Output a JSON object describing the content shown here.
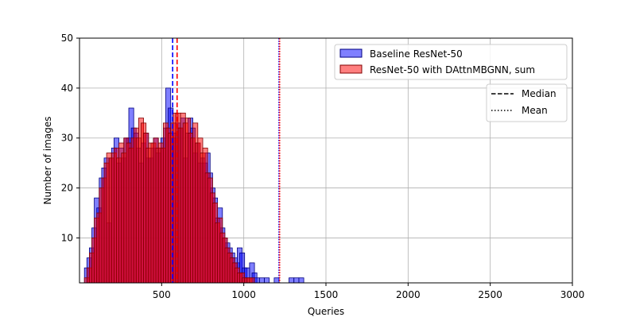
{
  "chart_data": {
    "type": "histogram",
    "title": "",
    "xlabel": "Queries",
    "ylabel": "Number of images",
    "xlim": [
      0,
      3000
    ],
    "ylim": [
      1,
      50
    ],
    "x_ticks": [
      500,
      1000,
      1500,
      2000,
      2500,
      3000
    ],
    "y_ticks": [
      10,
      20,
      30,
      40,
      50
    ],
    "grid": true,
    "bin_width": 30,
    "series": [
      {
        "name": "Baseline ResNet-50",
        "color": "#0000ff",
        "edge_color": "#000080",
        "alpha": 0.5,
        "bins": [
          [
            45,
            4
          ],
          [
            60,
            6
          ],
          [
            75,
            8
          ],
          [
            90,
            12
          ],
          [
            105,
            18
          ],
          [
            120,
            16
          ],
          [
            135,
            22
          ],
          [
            150,
            24
          ],
          [
            165,
            26
          ],
          [
            180,
            13
          ],
          [
            195,
            26
          ],
          [
            210,
            28
          ],
          [
            225,
            30
          ],
          [
            240,
            25
          ],
          [
            255,
            28
          ],
          [
            270,
            26
          ],
          [
            285,
            30
          ],
          [
            300,
            30
          ],
          [
            315,
            36
          ],
          [
            330,
            32
          ],
          [
            345,
            31
          ],
          [
            360,
            28
          ],
          [
            375,
            25
          ],
          [
            390,
            29
          ],
          [
            405,
            31
          ],
          [
            420,
            26
          ],
          [
            435,
            26
          ],
          [
            450,
            28
          ],
          [
            465,
            30
          ],
          [
            480,
            27
          ],
          [
            495,
            28
          ],
          [
            510,
            30
          ],
          [
            525,
            32
          ],
          [
            540,
            40
          ],
          [
            555,
            36
          ],
          [
            570,
            30
          ],
          [
            585,
            31
          ],
          [
            600,
            33
          ],
          [
            615,
            32
          ],
          [
            630,
            34
          ],
          [
            645,
            26
          ],
          [
            660,
            31
          ],
          [
            675,
            34
          ],
          [
            690,
            32
          ],
          [
            705,
            27
          ],
          [
            720,
            29
          ],
          [
            735,
            25
          ],
          [
            750,
            26
          ],
          [
            765,
            25
          ],
          [
            780,
            27
          ],
          [
            795,
            23
          ],
          [
            810,
            20
          ],
          [
            825,
            18
          ],
          [
            840,
            14
          ],
          [
            855,
            16
          ],
          [
            870,
            12
          ],
          [
            885,
            10
          ],
          [
            900,
            9
          ],
          [
            915,
            8
          ],
          [
            930,
            7
          ],
          [
            945,
            6
          ],
          [
            960,
            5
          ],
          [
            975,
            8
          ],
          [
            990,
            7
          ],
          [
            1005,
            4
          ],
          [
            1020,
            4
          ],
          [
            1050,
            5
          ],
          [
            1065,
            3
          ],
          [
            1080,
            2
          ],
          [
            1110,
            2
          ],
          [
            1140,
            2
          ],
          [
            1200,
            2
          ],
          [
            1290,
            2
          ],
          [
            1320,
            2
          ],
          [
            1350,
            2
          ],
          [
            1380,
            1
          ],
          [
            1590,
            1
          ],
          [
            1605,
            1
          ],
          [
            1635,
            1
          ],
          [
            2175,
            1
          ]
        ]
      },
      {
        "name": "ResNet-50 with DAttnMBGNN, sum",
        "color": "#ff0000",
        "edge_color": "#800000",
        "alpha": 0.5,
        "bins": [
          [
            45,
            2
          ],
          [
            60,
            4
          ],
          [
            75,
            7
          ],
          [
            90,
            10
          ],
          [
            105,
            14
          ],
          [
            120,
            15
          ],
          [
            135,
            20
          ],
          [
            150,
            22
          ],
          [
            165,
            25
          ],
          [
            180,
            27
          ],
          [
            195,
            26
          ],
          [
            210,
            27
          ],
          [
            225,
            28
          ],
          [
            240,
            26
          ],
          [
            255,
            29
          ],
          [
            270,
            27
          ],
          [
            285,
            30
          ],
          [
            300,
            29
          ],
          [
            315,
            28
          ],
          [
            330,
            30
          ],
          [
            345,
            32
          ],
          [
            360,
            30
          ],
          [
            375,
            34
          ],
          [
            390,
            33
          ],
          [
            405,
            31
          ],
          [
            420,
            28
          ],
          [
            435,
            29
          ],
          [
            450,
            29
          ],
          [
            465,
            30
          ],
          [
            480,
            28
          ],
          [
            495,
            29
          ],
          [
            510,
            28
          ],
          [
            525,
            33
          ],
          [
            540,
            32
          ],
          [
            555,
            31
          ],
          [
            570,
            33
          ],
          [
            585,
            35
          ],
          [
            600,
            35
          ],
          [
            615,
            32
          ],
          [
            630,
            35
          ],
          [
            645,
            33
          ],
          [
            660,
            34
          ],
          [
            675,
            31
          ],
          [
            690,
            30
          ],
          [
            705,
            33
          ],
          [
            720,
            29
          ],
          [
            735,
            30
          ],
          [
            750,
            27
          ],
          [
            765,
            28
          ],
          [
            780,
            23
          ],
          [
            795,
            22
          ],
          [
            810,
            19
          ],
          [
            825,
            17
          ],
          [
            840,
            13
          ],
          [
            855,
            14
          ],
          [
            870,
            11
          ],
          [
            885,
            10
          ],
          [
            900,
            8
          ],
          [
            915,
            7
          ],
          [
            930,
            6
          ],
          [
            945,
            5
          ],
          [
            960,
            4
          ],
          [
            975,
            3
          ],
          [
            990,
            3
          ],
          [
            1005,
            2
          ],
          [
            1020,
            2
          ],
          [
            1035,
            2
          ],
          [
            1050,
            2
          ],
          [
            1065,
            1
          ],
          [
            1095,
            1
          ],
          [
            1125,
            1
          ],
          [
            1170,
            1
          ],
          [
            1215,
            1
          ],
          [
            1230,
            1
          ],
          [
            1260,
            1
          ],
          [
            1380,
            1
          ],
          [
            1485,
            1
          ],
          [
            1530,
            1
          ],
          [
            1560,
            1
          ],
          [
            1650,
            1
          ],
          [
            1740,
            1
          ],
          [
            1860,
            1
          ],
          [
            2010,
            1
          ],
          [
            2205,
            1
          ],
          [
            2475,
            1
          ],
          [
            2715,
            1
          ]
        ]
      }
    ],
    "reference_lines": [
      {
        "series": "Baseline ResNet-50",
        "stat": "Median",
        "x": 567,
        "color": "#0000ff",
        "dash": "dashed"
      },
      {
        "series": "ResNet-50 with DAttnMBGNN, sum",
        "stat": "Median",
        "x": 594,
        "color": "#ff0000",
        "dash": "dashed"
      },
      {
        "series": "Baseline ResNet-50",
        "stat": "Mean",
        "x": 1214,
        "color": "#0000ff",
        "dash": "dotted"
      },
      {
        "series": "ResNet-50 with DAttnMBGNN, sum",
        "stat": "Mean",
        "x": 1218,
        "color": "#ff0000",
        "dash": "dotted"
      }
    ],
    "legend_series": {
      "placement": "upper-right",
      "entries": [
        "Baseline ResNet-50",
        "ResNet-50 with DAttnMBGNN, sum"
      ]
    },
    "legend_stats": {
      "placement": "upper-right, below series legend",
      "entries": [
        {
          "label": "Median",
          "dash": "dashed"
        },
        {
          "label": "Mean",
          "dash": "dotted"
        }
      ]
    }
  }
}
